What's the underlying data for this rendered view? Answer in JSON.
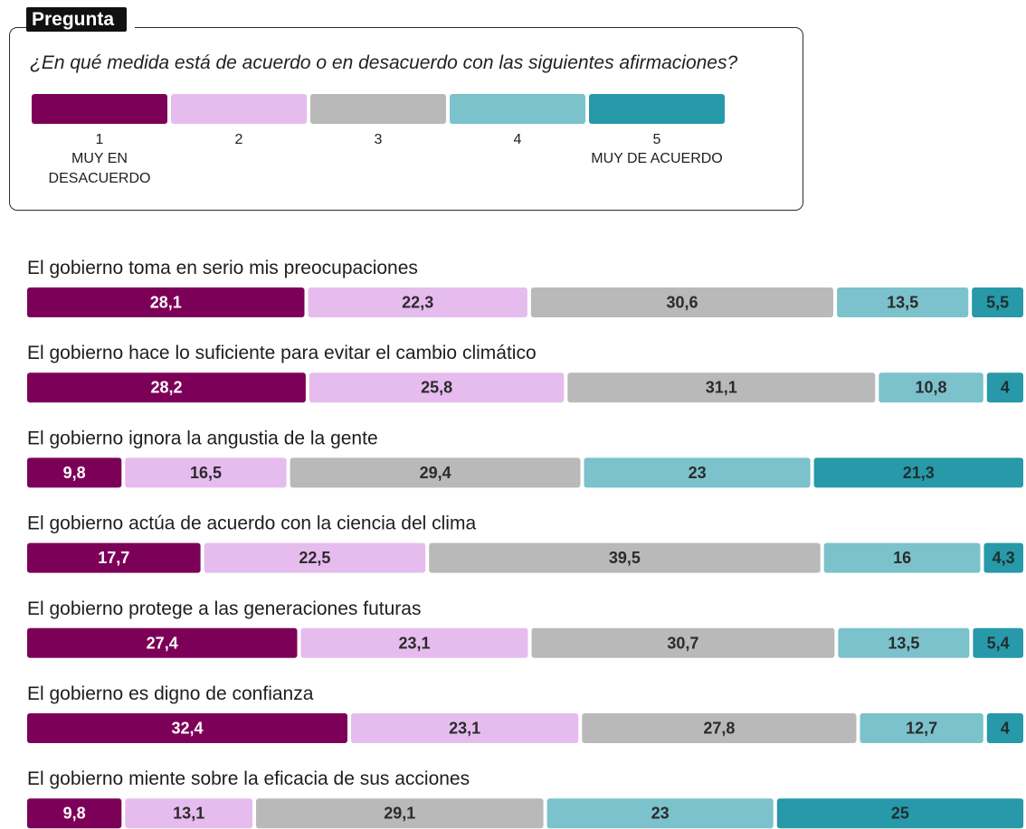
{
  "question_box": {
    "tag": "Pregunta",
    "question": "¿En qué medida está de acuerdo o en desacuerdo con las siguientes afirmaciones?"
  },
  "chart_data": {
    "type": "bar",
    "orientation": "horizontal",
    "stacked": "percent",
    "xlim": [
      0,
      100
    ],
    "grid": false,
    "legend_position": "top",
    "categories": [
      "El gobierno toma en serio mis preocupaciones",
      "El gobierno hace lo suficiente para evitar el cambio climático",
      "El gobierno ignora la angustia de la gente",
      "El gobierno actúa de acuerdo con la ciencia del clima",
      "El gobierno protege a las generaciones futuras",
      "El gobierno es digno de confianza",
      "El gobierno miente sobre la eficacia de sus acciones"
    ],
    "series": [
      {
        "name": "1",
        "scale_label": "MUY EN DESACUERDO",
        "color": "#7d0058",
        "label_color": "#ffffff",
        "values": [
          28.1,
          28.2,
          9.8,
          17.7,
          27.4,
          32.4,
          9.8
        ]
      },
      {
        "name": "2",
        "color": "#e6bcef",
        "label_color": "#2b2b2b",
        "values": [
          22.3,
          25.8,
          16.5,
          22.5,
          23.1,
          23.1,
          13.1
        ]
      },
      {
        "name": "3",
        "color": "#b9b9b9",
        "label_color": "#2b2b2b",
        "values": [
          30.6,
          31.1,
          29.4,
          39.5,
          30.7,
          27.8,
          29.1
        ]
      },
      {
        "name": "4",
        "color": "#7bc2cc",
        "label_color": "#2b2b2b",
        "values": [
          13.5,
          10.8,
          23,
          16,
          13.5,
          12.7,
          23
        ]
      },
      {
        "name": "5",
        "scale_label": "MUY DE ACUERDO",
        "color": "#2799a8",
        "label_color": "#1f2f33",
        "values": [
          5.5,
          4,
          21.3,
          4.3,
          5.4,
          4,
          25
        ]
      }
    ]
  }
}
